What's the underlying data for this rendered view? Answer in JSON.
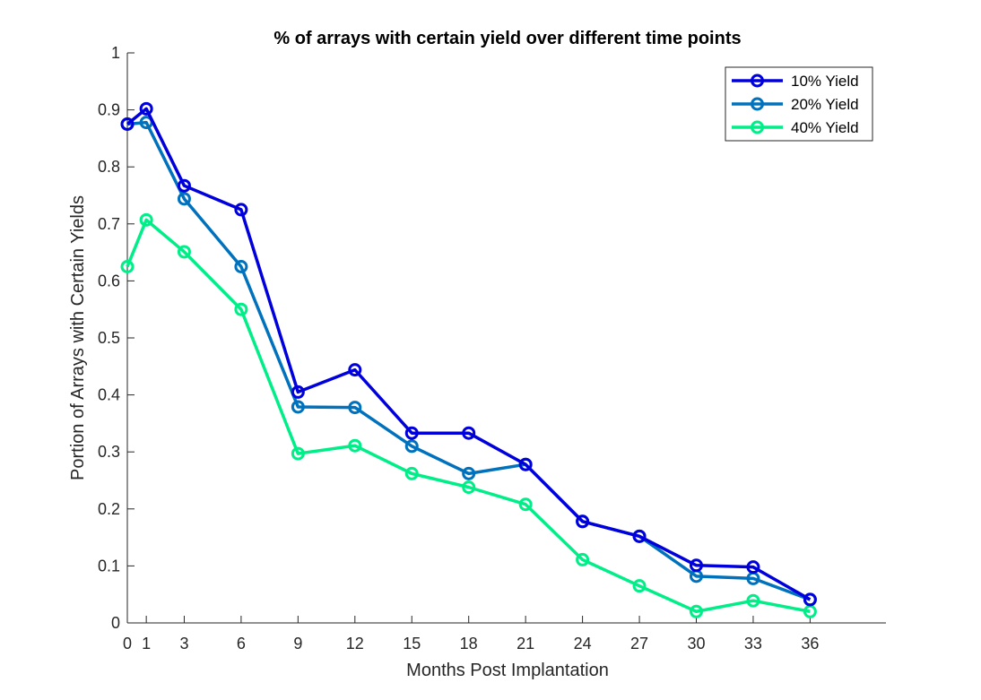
{
  "chart_data": {
    "type": "line",
    "title": "% of arrays with certain yield over different time points",
    "xlabel": "Months Post Implantation",
    "ylabel": "Portion of Arrays with Certain Yields",
    "xlim": [
      0,
      40
    ],
    "ylim": [
      0,
      1
    ],
    "xticks": [
      0,
      1,
      3,
      6,
      9,
      12,
      15,
      18,
      21,
      24,
      27,
      30,
      33,
      36
    ],
    "yticks": [
      0,
      0.1,
      0.2,
      0.3,
      0.4,
      0.5,
      0.6,
      0.7,
      0.8,
      0.9,
      1
    ],
    "grid": false,
    "legend_position": "top-right",
    "x": [
      0,
      1,
      3,
      6,
      9,
      12,
      15,
      18,
      21,
      24,
      27,
      30,
      33,
      36
    ],
    "series": [
      {
        "name": "10% Yield",
        "color": "#0000dd",
        "values": [
          0.875,
          0.902,
          0.767,
          0.725,
          0.405,
          0.444,
          0.333,
          0.333,
          0.278,
          0.178,
          0.152,
          0.101,
          0.098,
          0.041
        ]
      },
      {
        "name": "20% Yield",
        "color": "#0072bd",
        "values": [
          0.875,
          0.878,
          0.744,
          0.625,
          0.379,
          0.378,
          0.31,
          0.262,
          0.278,
          0.178,
          0.152,
          0.082,
          0.078,
          0.041
        ]
      },
      {
        "name": "40% Yield",
        "color": "#00ee88",
        "values": [
          0.625,
          0.707,
          0.651,
          0.55,
          0.297,
          0.311,
          0.262,
          0.238,
          0.208,
          0.111,
          0.065,
          0.02,
          0.039,
          0.02
        ]
      }
    ]
  }
}
